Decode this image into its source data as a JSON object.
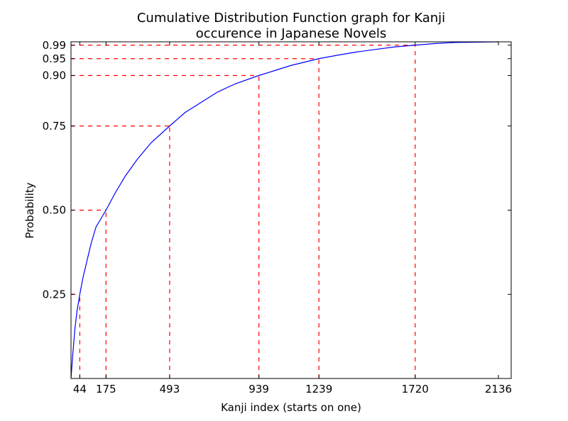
{
  "chart_data": {
    "type": "line",
    "title": [
      "Cumulative Distribution Function graph for Kanji",
      "occurence in Japanese Novels"
    ],
    "xlabel": "Kanji index (starts on one)",
    "ylabel": "Probability",
    "xlim": [
      0,
      2200
    ],
    "ylim": [
      0,
      1.0
    ],
    "x_ticks": [
      44,
      175,
      493,
      939,
      1239,
      1720,
      2136
    ],
    "y_ticks": [
      0.25,
      0.5,
      0.75,
      0.9,
      0.95,
      0.99
    ],
    "y_tick_labels": [
      "0.25",
      "0.50",
      "0.75",
      "0.90",
      "0.95",
      "0.99"
    ],
    "grid": false,
    "series": [
      {
        "color": "#0000ff",
        "x": [
          0,
          5,
          10,
          20,
          30,
          44,
          60,
          80,
          100,
          125,
          150,
          175,
          220,
          270,
          330,
          400,
          493,
          570,
          650,
          730,
          820,
          939,
          1020,
          1100,
          1170,
          1239,
          1330,
          1430,
          1530,
          1620,
          1720,
          1820,
          1920,
          2020,
          2136
        ],
        "y": [
          0.0,
          0.04,
          0.08,
          0.15,
          0.2,
          0.25,
          0.3,
          0.35,
          0.4,
          0.45,
          0.475,
          0.5,
          0.55,
          0.6,
          0.65,
          0.7,
          0.75,
          0.79,
          0.82,
          0.85,
          0.875,
          0.9,
          0.915,
          0.93,
          0.94,
          0.95,
          0.96,
          0.97,
          0.978,
          0.985,
          0.99,
          0.995,
          0.998,
          0.999,
          1.0
        ]
      }
    ],
    "reference_lines": {
      "color": "#ff0000",
      "points": [
        {
          "x": 44,
          "y": 0.25
        },
        {
          "x": 175,
          "y": 0.5
        },
        {
          "x": 493,
          "y": 0.75
        },
        {
          "x": 939,
          "y": 0.9
        },
        {
          "x": 1239,
          "y": 0.95
        },
        {
          "x": 1720,
          "y": 0.99
        }
      ]
    }
  }
}
